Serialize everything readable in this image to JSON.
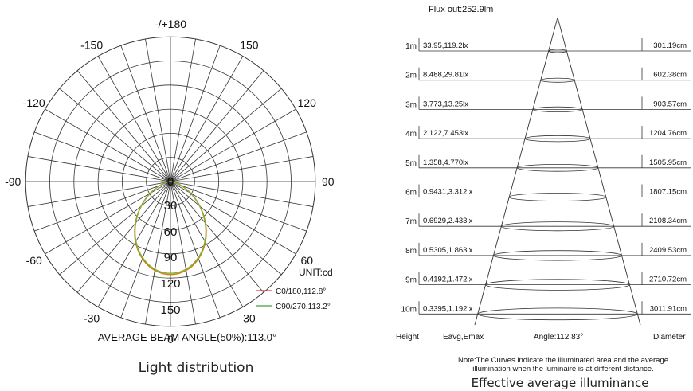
{
  "polar": {
    "angle_labels": [
      {
        "a": 180,
        "text": "-/+180"
      },
      {
        "a": 150,
        "text": "150"
      },
      {
        "a": -150,
        "text": "-150"
      },
      {
        "a": 120,
        "text": "120"
      },
      {
        "a": -120,
        "text": "-120"
      },
      {
        "a": 90,
        "text": "90"
      },
      {
        "a": -90,
        "text": "-90"
      },
      {
        "a": 60,
        "text": "60"
      },
      {
        "a": -60,
        "text": "-60"
      },
      {
        "a": 30,
        "text": "30"
      },
      {
        "a": -30,
        "text": "-30"
      },
      {
        "a": 0,
        "text": "0"
      }
    ],
    "radial_labels": [
      "0",
      "30",
      "60",
      "90",
      "120",
      "150"
    ],
    "unit": "UNIT:cd",
    "legend": [
      {
        "label": "C0/180,112.8°",
        "color": "#e53935"
      },
      {
        "label": "C90/270,113.2°",
        "color": "#43a047"
      }
    ],
    "beam_angle_text": "AVERAGE BEAM ANGLE(50%):113.0°",
    "caption": "Light distribution",
    "curve_color_c0": "#c8860a",
    "curve_color_c90": "#7cb342"
  },
  "illuminance": {
    "flux": "Flux out:252.9lm",
    "rows": [
      {
        "height": "1m",
        "values": "33.95,119.2lx",
        "diameter": "301.19cm"
      },
      {
        "height": "2m",
        "values": "8.488,29.81lx",
        "diameter": "602.38cm"
      },
      {
        "height": "3m",
        "values": "3.773,13.25lx",
        "diameter": "903.57cm"
      },
      {
        "height": "4m",
        "values": "2.122,7.453lx",
        "diameter": "1204.76cm"
      },
      {
        "height": "5m",
        "values": "1.358,4.770lx",
        "diameter": "1505.95cm"
      },
      {
        "height": "6m",
        "values": "0.9431,3.312lx",
        "diameter": "1807.15cm"
      },
      {
        "height": "7m",
        "values": "0.6929,2.433lx",
        "diameter": "2108.34cm"
      },
      {
        "height": "8m",
        "values": "0.5305,1.863lx",
        "diameter": "2409.53cm"
      },
      {
        "height": "9m",
        "values": "0.4192,1.472lx",
        "diameter": "2710.72cm"
      },
      {
        "height": "10m",
        "values": "0.3395,1.192lx",
        "diameter": "3011.91cm"
      }
    ],
    "footer": {
      "height": "Height",
      "eavg": "Eavg,Emax",
      "angle": "Angle:112.83°",
      "diameter": "Diameter"
    },
    "note_line1": "Note:The Curves indicate the illuminated area and the average",
    "note_line2": "illumination when the luminaire is at different distance.",
    "caption": "Effective average illuminance"
  }
}
